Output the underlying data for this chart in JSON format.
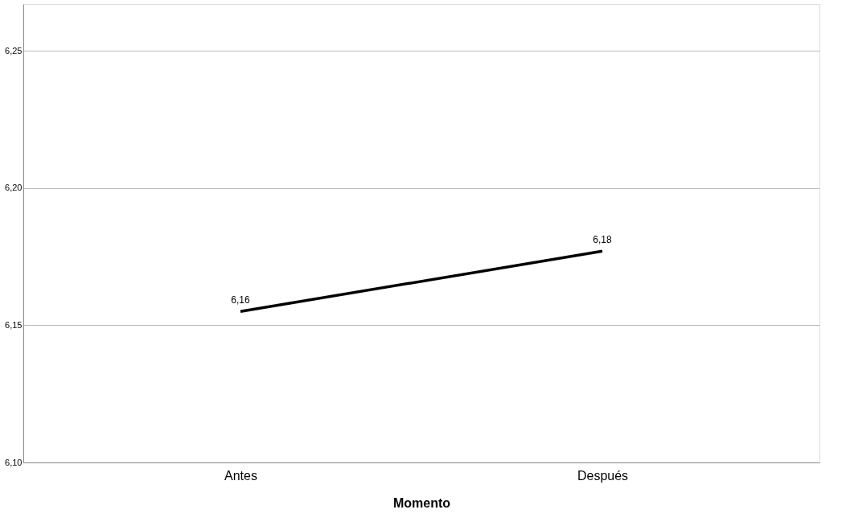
{
  "chart_data": {
    "type": "line",
    "xlabel": "Momento",
    "categories": [
      "Antes",
      "Después"
    ],
    "series": [
      {
        "color": "#000000",
        "values": [
          6.155,
          6.177
        ]
      }
    ],
    "value_labels": [
      "6,16",
      "6,18"
    ],
    "ylim": [
      6.1,
      6.267
    ],
    "yticks": [
      {
        "value": 6.1,
        "label": "6,10"
      },
      {
        "value": 6.15,
        "label": "6,15"
      },
      {
        "value": 6.2,
        "label": "6,20"
      },
      {
        "value": 6.25,
        "label": "6,25"
      }
    ],
    "grid": "y",
    "marker": "none",
    "line_style": "solid"
  }
}
